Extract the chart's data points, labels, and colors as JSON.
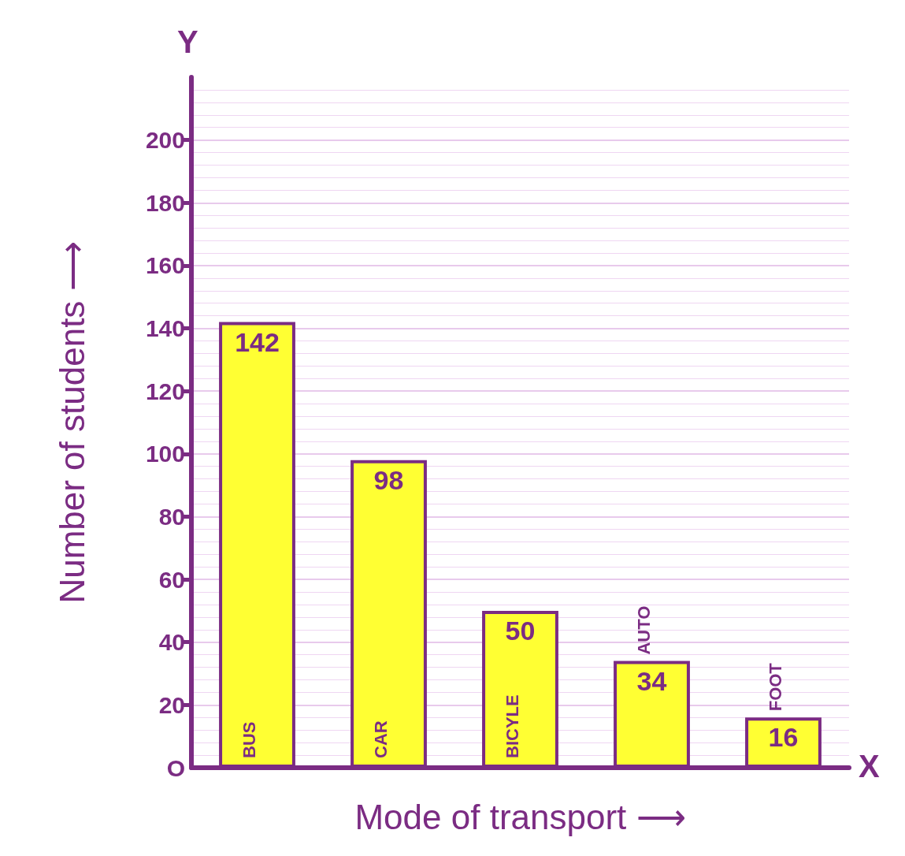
{
  "chart_data": {
    "type": "bar",
    "xlabel": "Mode of transport ⟶",
    "ylabel": "Number of students ⟶",
    "categories": [
      "BUS",
      "CAR",
      "BICYLE",
      "AUTO",
      "FOOT"
    ],
    "values": [
      142,
      98,
      50,
      34,
      16
    ],
    "color": "#ffff33",
    "data_labels": true,
    "ylim": [
      0,
      220
    ],
    "yticks": [
      {
        "value": 0,
        "label": "O"
      },
      20,
      40,
      60,
      80,
      100,
      120,
      140,
      160,
      180,
      200
    ],
    "grid": "y",
    "annotations": [
      "Y",
      "X"
    ]
  }
}
